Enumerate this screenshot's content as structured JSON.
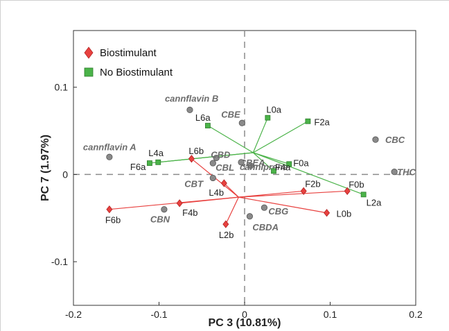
{
  "chart_data": {
    "type": "scatter",
    "xlabel": "PC 3 (10.81%)",
    "ylabel": "PC 7 (1.97%)",
    "xlim": [
      -0.2,
      0.2
    ],
    "ylim": [
      -0.15,
      0.165
    ],
    "x_ticks": [
      {
        "value": -0.2,
        "label": "-0.2"
      },
      {
        "value": -0.1,
        "label": "-0.1"
      },
      {
        "value": 0,
        "label": "0"
      },
      {
        "value": 0.1,
        "label": "0.1"
      },
      {
        "value": 0.2,
        "label": "0.2"
      }
    ],
    "y_ticks": [
      {
        "value": 0.1,
        "label": "0.1"
      },
      {
        "value": 0,
        "label": "0"
      },
      {
        "value": -0.1,
        "label": "-0.1"
      }
    ],
    "legend": {
      "placement": "top-left",
      "entries": [
        {
          "name": "Biostimulant",
          "color": "#e8413f",
          "marker": "diamond"
        },
        {
          "name": "No Biostimulant",
          "color": "#4bb349",
          "marker": "square"
        }
      ]
    },
    "series": [
      {
        "name": "Biostimulant",
        "color": "#e8413f",
        "marker": "diamond",
        "centroid": [
          -0.007,
          -0.026
        ],
        "points": [
          {
            "label": "F6b",
            "x": -0.158,
            "y": -0.04
          },
          {
            "label": "F4b",
            "x": -0.076,
            "y": -0.033
          },
          {
            "label": "L6b",
            "x": -0.062,
            "y": 0.018
          },
          {
            "label": "L4b",
            "x": -0.024,
            "y": -0.01
          },
          {
            "label": "L2b",
            "x": -0.022,
            "y": -0.057
          },
          {
            "label": "F2b",
            "x": 0.069,
            "y": -0.019
          },
          {
            "label": "L0b",
            "x": 0.096,
            "y": -0.044
          },
          {
            "label": "F0b",
            "x": 0.12,
            "y": -0.019
          }
        ]
      },
      {
        "name": "No Biostimulant",
        "color": "#4bb349",
        "marker": "square",
        "centroid": [
          0.01,
          0.025
        ],
        "points": [
          {
            "label": "F6a",
            "x": -0.111,
            "y": 0.013
          },
          {
            "label": "L4a",
            "x": -0.101,
            "y": 0.014
          },
          {
            "label": "L6a",
            "x": -0.043,
            "y": 0.056
          },
          {
            "label": "L0a",
            "x": 0.027,
            "y": 0.065
          },
          {
            "label": "F2a",
            "x": 0.074,
            "y": 0.061
          },
          {
            "label": "F0a",
            "x": 0.052,
            "y": 0.012
          },
          {
            "label": "F4a",
            "x": 0.034,
            "y": 0.004
          },
          {
            "label": "L2a",
            "x": 0.139,
            "y": -0.023
          }
        ]
      }
    ],
    "loadings": {
      "color": "#8a8a8a",
      "points": [
        {
          "label": "cannflavin A",
          "x": -0.158,
          "y": 0.02
        },
        {
          "label": "cannflavin B",
          "x": -0.064,
          "y": 0.074
        },
        {
          "label": "CBE",
          "x": -0.003,
          "y": 0.059
        },
        {
          "label": "CBD",
          "x": -0.033,
          "y": 0.019
        },
        {
          "label": "CBEA",
          "x": 0.007,
          "y": 0.01
        },
        {
          "label": "CBL",
          "x": -0.037,
          "y": 0.013
        },
        {
          "label": "CBT",
          "x": -0.037,
          "y": -0.004
        },
        {
          "label": "cannIprene",
          "x": -0.004,
          "y": 0.014
        },
        {
          "label": "CBN",
          "x": -0.094,
          "y": -0.04
        },
        {
          "label": "CBG",
          "x": 0.023,
          "y": -0.038
        },
        {
          "label": "CBDA",
          "x": 0.006,
          "y": -0.048
        },
        {
          "label": "CBC",
          "x": 0.153,
          "y": 0.04
        },
        {
          "label": "THC",
          "x": 0.175,
          "y": 0.003
        }
      ]
    }
  }
}
